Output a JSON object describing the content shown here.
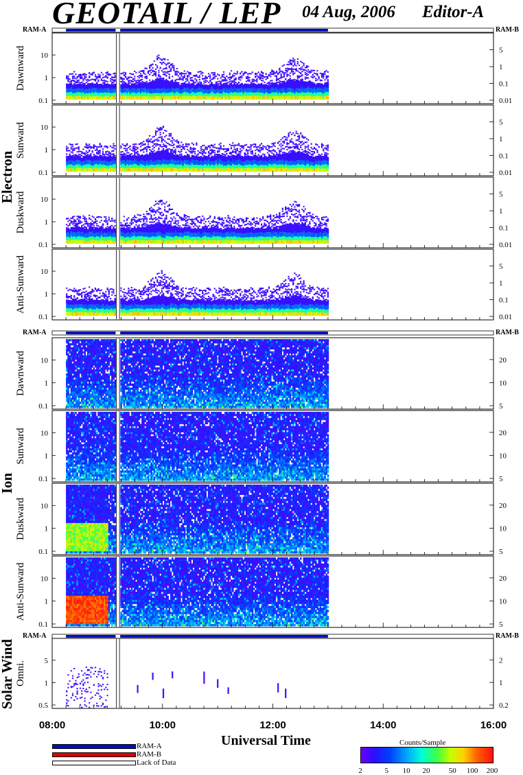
{
  "header": {
    "title": "GEOTAIL / LEP",
    "date": "04 Aug, 2006",
    "editor": "Editor-A"
  },
  "colors": {
    "ram_a": "#0010c0",
    "ram_b": "#e00000",
    "lack_of_data": "#ffffff"
  },
  "chart_data": {
    "type": "heatmap",
    "x_axis": {
      "label": "Universal Time",
      "ticks": [
        "08:00",
        "10:00",
        "12:00",
        "14:00",
        "16:00"
      ],
      "range": [
        "08:00",
        "16:00"
      ]
    },
    "data_coverage": {
      "start": "08:15",
      "end": "13:00",
      "gap": [
        "09:09",
        "09:14"
      ]
    },
    "ram_bar_labels": {
      "left": "RAM-A",
      "right": "RAM-B"
    },
    "groups": [
      {
        "name": "Electron",
        "panels": [
          {
            "label": "Dawnward",
            "left_ticks": [
              "0.1",
              "1",
              "10"
            ],
            "right_ticks": [
              "0.01",
              "0.1",
              "1",
              "5"
            ]
          },
          {
            "label": "Sunward",
            "left_ticks": [
              "0.1",
              "1",
              "10"
            ],
            "right_ticks": [
              "0.01",
              "0.1",
              "1",
              "5"
            ]
          },
          {
            "label": "Duskward",
            "left_ticks": [
              "0.1",
              "1",
              "10"
            ],
            "right_ticks": [
              "0.01",
              "0.1",
              "1",
              "5"
            ]
          },
          {
            "label": "Anti-Sunward",
            "left_ticks": [
              "0.1",
              "1",
              "10"
            ],
            "right_ticks": [
              "0.01",
              "0.1",
              "1",
              "5"
            ]
          }
        ]
      },
      {
        "name": "Ion",
        "panels": [
          {
            "label": "Dawnward",
            "left_ticks": [
              "0.1",
              "1",
              "10"
            ],
            "right_ticks": [
              "5",
              "10",
              "20"
            ]
          },
          {
            "label": "Sunward",
            "left_ticks": [
              "0.1",
              "1",
              "10"
            ],
            "right_ticks": [
              "5",
              "10",
              "20"
            ]
          },
          {
            "label": "Duskward",
            "left_ticks": [
              "0.1",
              "1",
              "10"
            ],
            "right_ticks": [
              "5",
              "10",
              "20"
            ]
          },
          {
            "label": "Anti-Sunward",
            "left_ticks": [
              "0.1",
              "1",
              "10"
            ],
            "right_ticks": [
              "5",
              "10",
              "20"
            ]
          }
        ]
      },
      {
        "name": "Solar Wind",
        "panels": [
          {
            "label": "Omni.",
            "left_ticks": [
              "0.5",
              "1",
              "5"
            ],
            "right_ticks": [
              "0.2",
              "1",
              "2"
            ]
          }
        ]
      }
    ],
    "legend": {
      "ram_a": "RAM-A",
      "ram_b": "RAM-B",
      "lack": "Lack of Data"
    },
    "colorbar": {
      "title": "Counts/Sample",
      "ticks": [
        "2",
        "5",
        "10",
        "20",
        "50",
        "100",
        "200"
      ],
      "scale": "log",
      "range": [
        2,
        200
      ]
    }
  }
}
